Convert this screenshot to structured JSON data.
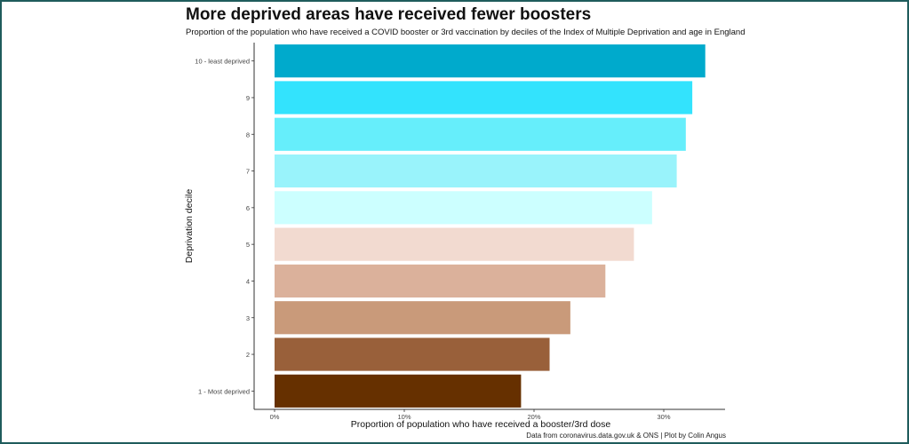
{
  "colors": {
    "frame": "#1f5c5c",
    "axis": "#333333"
  },
  "chart_data": {
    "type": "bar",
    "orientation": "horizontal",
    "title": "More deprived areas have received fewer boosters",
    "subtitle": "Proportion of the population who have received a COVID booster or 3rd vaccination by deciles of the Index of Multiple Deprivation and age in England",
    "xlabel": "Proportion of population who have received a booster/3rd dose",
    "ylabel": "Deprivation decile",
    "caption": "Data from coronavirus.data.gov.uk & ONS | Plot by Colin Angus",
    "xlim": [
      0,
      0.35
    ],
    "x_ticks": [
      0,
      0.1,
      0.2,
      0.3
    ],
    "x_tick_labels": [
      "0%",
      "10%",
      "20%",
      "30%"
    ],
    "grid": false,
    "categories": [
      "1 - Most deprived",
      "2",
      "3",
      "4",
      "5",
      "6",
      "7",
      "8",
      "9",
      "10 - least deprived"
    ],
    "values": [
      0.19,
      0.212,
      0.228,
      0.255,
      0.277,
      0.291,
      0.31,
      0.317,
      0.322,
      0.332
    ],
    "bar_colors": [
      "#663000",
      "#99603a",
      "#c99a7a",
      "#dbb19b",
      "#f2dad0",
      "#ccffff",
      "#99f3fb",
      "#66eefb",
      "#33e3fd",
      "#00aacc"
    ]
  }
}
